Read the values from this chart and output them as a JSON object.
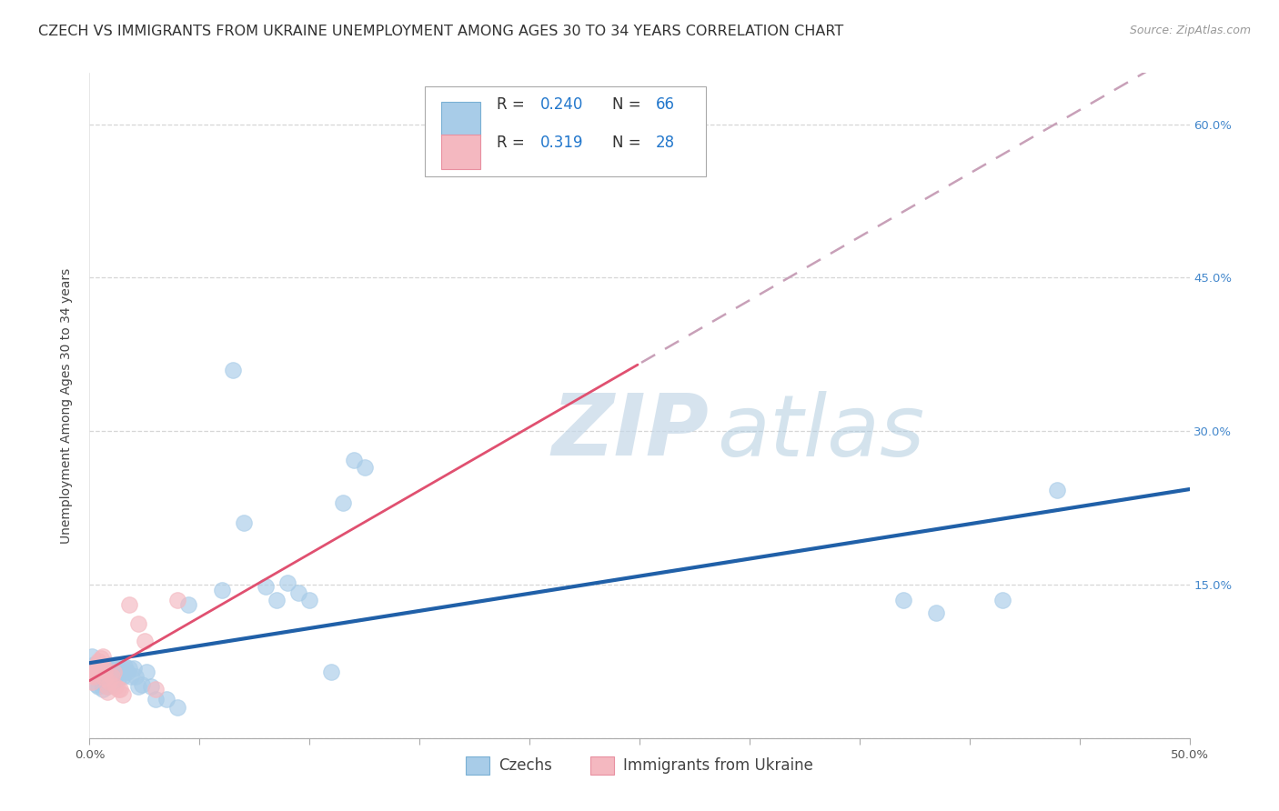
{
  "title": "CZECH VS IMMIGRANTS FROM UKRAINE UNEMPLOYMENT AMONG AGES 30 TO 34 YEARS CORRELATION CHART",
  "source": "Source: ZipAtlas.com",
  "ylabel": "Unemployment Among Ages 30 to 34 years",
  "xlim": [
    0.0,
    0.5
  ],
  "ylim": [
    0.0,
    0.65
  ],
  "watermark_zip": "ZIP",
  "watermark_atlas": "atlas",
  "r_czech": "0.240",
  "n_czech": "66",
  "r_ukraine": "0.319",
  "n_ukraine": "28",
  "legend_label1": "Czechs",
  "legend_label2": "Immigrants from Ukraine",
  "czech_fill": "#a8cce8",
  "ukraine_fill": "#f4b8c0",
  "czech_line_color": "#2060a8",
  "ukraine_line_color": "#e05070",
  "ukraine_dash_color": "#c8a0b8",
  "background_color": "#ffffff",
  "grid_color": "#cccccc",
  "right_ytick_color": "#4488cc",
  "czech_x": [
    0.001,
    0.002,
    0.002,
    0.003,
    0.003,
    0.003,
    0.004,
    0.004,
    0.004,
    0.005,
    0.005,
    0.005,
    0.006,
    0.006,
    0.006,
    0.006,
    0.007,
    0.007,
    0.007,
    0.008,
    0.008,
    0.008,
    0.009,
    0.009,
    0.01,
    0.01,
    0.01,
    0.011,
    0.011,
    0.012,
    0.012,
    0.013,
    0.013,
    0.014,
    0.015,
    0.015,
    0.016,
    0.017,
    0.018,
    0.019,
    0.02,
    0.021,
    0.022,
    0.024,
    0.026,
    0.028,
    0.03,
    0.035,
    0.04,
    0.045,
    0.06,
    0.065,
    0.07,
    0.08,
    0.085,
    0.09,
    0.095,
    0.1,
    0.11,
    0.115,
    0.12,
    0.125,
    0.37,
    0.385,
    0.415,
    0.44
  ],
  "czech_y": [
    0.08,
    0.072,
    0.065,
    0.068,
    0.06,
    0.052,
    0.065,
    0.058,
    0.05,
    0.07,
    0.062,
    0.055,
    0.068,
    0.06,
    0.052,
    0.048,
    0.07,
    0.062,
    0.055,
    0.068,
    0.06,
    0.05,
    0.072,
    0.06,
    0.07,
    0.062,
    0.052,
    0.068,
    0.058,
    0.072,
    0.06,
    0.068,
    0.058,
    0.065,
    0.068,
    0.06,
    0.07,
    0.065,
    0.068,
    0.06,
    0.068,
    0.06,
    0.05,
    0.052,
    0.065,
    0.05,
    0.038,
    0.038,
    0.03,
    0.13,
    0.145,
    0.36,
    0.21,
    0.148,
    0.135,
    0.152,
    0.142,
    0.135,
    0.065,
    0.23,
    0.272,
    0.265,
    0.135,
    0.122,
    0.135,
    0.242
  ],
  "ukraine_x": [
    0.001,
    0.001,
    0.002,
    0.002,
    0.003,
    0.003,
    0.004,
    0.004,
    0.005,
    0.005,
    0.006,
    0.006,
    0.007,
    0.007,
    0.008,
    0.008,
    0.009,
    0.01,
    0.011,
    0.012,
    0.013,
    0.014,
    0.015,
    0.018,
    0.022,
    0.025,
    0.03,
    0.04
  ],
  "ukraine_y": [
    0.062,
    0.055,
    0.068,
    0.06,
    0.072,
    0.065,
    0.075,
    0.068,
    0.078,
    0.07,
    0.08,
    0.072,
    0.065,
    0.058,
    0.05,
    0.045,
    0.055,
    0.06,
    0.065,
    0.05,
    0.048,
    0.048,
    0.042,
    0.13,
    0.112,
    0.095,
    0.048,
    0.135
  ],
  "title_fontsize": 11.5,
  "axis_label_fontsize": 10,
  "tick_fontsize": 9.5,
  "legend_fontsize": 12
}
